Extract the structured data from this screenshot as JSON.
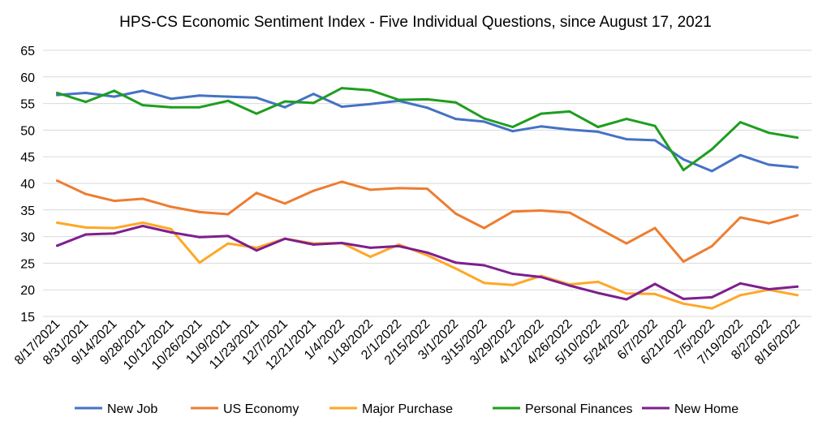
{
  "chart_data": {
    "type": "line",
    "title": "HPS-CS Economic Sentiment Index - Five Individual Questions, since August 17, 2021",
    "xlabel": "",
    "ylabel": "",
    "ylim": [
      15,
      65
    ],
    "yticks": [
      15,
      20,
      25,
      30,
      35,
      40,
      45,
      50,
      55,
      60,
      65
    ],
    "grid": true,
    "legend_position": "bottom",
    "categories": [
      "8/17/2021",
      "8/31/2021",
      "9/14/2021",
      "9/28/2021",
      "10/12/2021",
      "10/26/2021",
      "11/9/2021",
      "11/23/2021",
      "12/7/2021",
      "12/21/2021",
      "1/4/2022",
      "1/18/2022",
      "2/1/2022",
      "2/15/2022",
      "3/1/2022",
      "3/15/2022",
      "3/29/2022",
      "4/12/2022",
      "4/26/2022",
      "5/10/2022",
      "5/24/2022",
      "6/7/2022",
      "6/21/2022",
      "7/5/2022",
      "7/19/2022",
      "8/2/2022",
      "8/16/2022"
    ],
    "series": [
      {
        "name": "New Job",
        "color": "#4472C4",
        "values": [
          56.6,
          57.0,
          56.3,
          57.4,
          55.9,
          56.5,
          56.3,
          56.1,
          54.3,
          56.8,
          54.4,
          54.9,
          55.5,
          54.2,
          52.1,
          51.6,
          49.8,
          50.7,
          50.1,
          49.7,
          48.3,
          48.1,
          44.5,
          42.3,
          45.3,
          43.5,
          43.0
        ]
      },
      {
        "name": "US Economy",
        "color": "#ED7D31",
        "values": [
          40.5,
          38.0,
          36.7,
          37.1,
          35.6,
          34.6,
          34.2,
          38.2,
          36.2,
          38.6,
          40.3,
          38.8,
          39.1,
          39.0,
          34.3,
          31.6,
          34.7,
          34.9,
          34.5,
          31.6,
          28.7,
          31.6,
          25.3,
          28.2,
          33.6,
          32.5,
          34.0
        ]
      },
      {
        "name": "Major Purchase",
        "color": "#FFA726",
        "values": [
          32.6,
          31.7,
          31.6,
          32.6,
          31.4,
          25.1,
          28.7,
          27.9,
          29.6,
          28.7,
          28.8,
          26.2,
          28.5,
          26.5,
          24.0,
          21.3,
          20.9,
          22.6,
          21.0,
          21.5,
          19.3,
          19.2,
          17.4,
          16.5,
          19.0,
          20.0,
          19.0
        ]
      },
      {
        "name": "Personal Finances",
        "color": "#1E9E1E",
        "values": [
          57.0,
          55.3,
          57.4,
          54.7,
          54.3,
          54.3,
          55.5,
          53.1,
          55.4,
          55.1,
          57.9,
          57.5,
          55.7,
          55.8,
          55.2,
          52.2,
          50.6,
          53.1,
          53.5,
          50.6,
          52.1,
          50.8,
          42.5,
          46.4,
          51.5,
          49.5,
          48.6
        ]
      },
      {
        "name": "New Home",
        "color": "#7E1E8E",
        "values": [
          28.3,
          30.4,
          30.6,
          32.0,
          30.8,
          29.9,
          30.1,
          27.4,
          29.6,
          28.5,
          28.8,
          27.9,
          28.2,
          27.0,
          25.1,
          24.6,
          23.0,
          22.4,
          20.8,
          19.4,
          18.2,
          21.1,
          18.3,
          18.6,
          21.2,
          20.1,
          20.6
        ]
      }
    ]
  }
}
